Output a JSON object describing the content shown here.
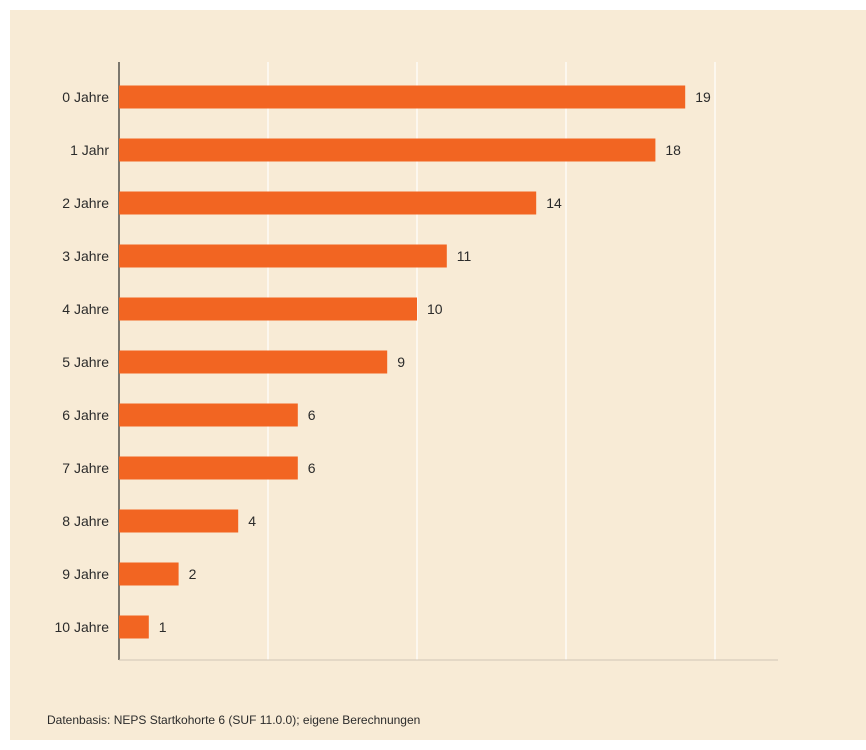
{
  "chart_data": {
    "type": "bar",
    "orientation": "horizontal",
    "categories": [
      "0 Jahre",
      "1 Jahr",
      "2 Jahre",
      "3 Jahre",
      "4 Jahre",
      "5 Jahre",
      "6 Jahre",
      "7 Jahre",
      "8 Jahre",
      "9 Jahre",
      "10 Jahre"
    ],
    "values": [
      19,
      18,
      14,
      11,
      10,
      9,
      6,
      6,
      4,
      2,
      1
    ],
    "xlim": [
      0,
      22
    ],
    "title": "",
    "xlabel": "",
    "ylabel": "",
    "grid": true,
    "bar_color": "#f26522",
    "background_color": "#f8ebd6",
    "gridline_color": "#ffffff"
  },
  "footer": {
    "source": "Datenbasis: NEPS Startkohorte 6 (SUF 11.0.0); eigene Berechnungen"
  }
}
